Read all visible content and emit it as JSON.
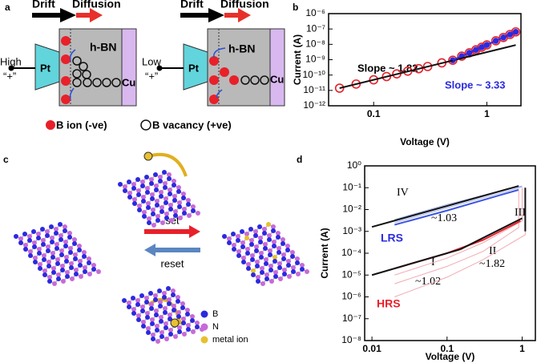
{
  "panel_a": {
    "label": "a",
    "drift": [
      "Drift",
      "Drift"
    ],
    "diffusion": [
      "Diffusion",
      "Diffusion"
    ],
    "hbn": [
      "h-BN",
      "h-BN"
    ],
    "pt": [
      "Pt",
      "Pt"
    ],
    "cu": [
      "Cu",
      "Cu"
    ],
    "bias": [
      "High",
      "Low"
    ],
    "plus": [
      "“+”",
      "“+”"
    ],
    "legend": [
      "B ion (-ve)",
      "B vacancy (+ve)"
    ]
  },
  "panel_c": {
    "label": "c",
    "set": "set",
    "reset": "reset",
    "legend": [
      "B",
      "N",
      "metal ion"
    ]
  },
  "chart_data": [
    {
      "type": "scatter",
      "label": "b",
      "x_label": "Voltage (V)",
      "y_label": "Current (A)",
      "log_x": true,
      "log_y": true,
      "xlim": [
        0.04,
        2
      ],
      "ylim": [
        1e-12,
        1e-06
      ],
      "xticks": [
        0.1,
        1
      ],
      "yticks": [
        {
          "value": 1e-12,
          "label": "10⁻¹²"
        },
        {
          "value": 1e-11,
          "label": "10⁻¹¹"
        },
        {
          "value": 1e-10,
          "label": "10⁻¹⁰"
        },
        {
          "value": 1e-09,
          "label": "10⁻⁹"
        },
        {
          "value": 1e-08,
          "label": "10⁻⁸"
        },
        {
          "value": 1e-07,
          "label": "10⁻⁷"
        },
        {
          "value": 1e-06,
          "label": "10⁻⁶"
        }
      ],
      "series": [
        {
          "color": "#e8202a",
          "marker": "open-circle",
          "x": [
            0.05,
            0.07,
            0.1,
            0.13,
            0.16,
            0.2,
            0.25,
            0.3,
            0.4,
            0.5,
            0.6,
            0.7,
            0.8,
            0.9,
            1.0,
            1.2,
            1.4,
            1.6,
            1.8
          ],
          "values": [
            1.4e-11,
            2.6e-11,
            4.9e-11,
            8e-11,
            1.2e-10,
            1.8e-10,
            2.6e-10,
            3.6e-10,
            6.2e-10,
            9.2e-10,
            1.7e-09,
            2.8e-09,
            4.4e-09,
            6.5e-09,
            9.2e-09,
            1.7e-08,
            2.8e-08,
            4.4e-08,
            6.5e-08
          ]
        },
        {
          "color": "#2b2be0",
          "marker": "dot",
          "x": [
            0.5,
            0.6,
            0.7,
            0.8,
            0.9,
            1.0,
            1.2,
            1.4,
            1.6,
            1.8
          ],
          "values": [
            9.2e-10,
            1.7e-09,
            2.8e-09,
            4.4e-09,
            6.5e-09,
            9.2e-09,
            1.7e-08,
            2.8e-08,
            4.4e-08,
            6.5e-08
          ]
        },
        {
          "color": "#111111",
          "marker": "line",
          "x": [
            0.05,
            1.8
          ],
          "values": [
            1.4e-11,
            9e-09
          ]
        },
        {
          "color": "#2b2be0",
          "marker": "line",
          "x": [
            0.5,
            1.8
          ],
          "values": [
            9.2e-10,
            6.5e-08
          ]
        }
      ],
      "annotations": [
        "Slope ~ 1.82",
        "Slope ~ 3.33"
      ]
    },
    {
      "type": "line",
      "label": "d",
      "x_label": "Voltage (V)",
      "y_label": "Current (A)",
      "log_x": true,
      "log_y": true,
      "xlim": [
        0.008,
        1.5
      ],
      "ylim": [
        1e-08,
        1
      ],
      "xticks": [
        0.01,
        0.1,
        1
      ],
      "yticks": [
        {
          "value": 1e-08,
          "label": "10⁻⁸"
        },
        {
          "value": 1e-07,
          "label": "10⁻⁷"
        },
        {
          "value": 1e-06,
          "label": "10⁻⁶"
        },
        {
          "value": 1e-05,
          "label": "10⁻⁵"
        },
        {
          "value": 0.0001,
          "label": "10⁻⁴"
        },
        {
          "value": 0.001,
          "label": "10⁻³"
        },
        {
          "value": 0.01,
          "label": "10⁻²"
        },
        {
          "value": 0.1,
          "label": "10⁻¹"
        },
        {
          "value": 1,
          "label": "10⁰"
        }
      ],
      "series": [
        {
          "color": "#9fb0f0",
          "width": 1,
          "x": [
            0.02,
            0.1,
            0.5,
            1.0
          ],
          "values": [
            0.0025,
            0.012,
            0.055,
            0.11
          ]
        },
        {
          "color": "#9fb0f0",
          "width": 1,
          "x": [
            0.02,
            0.1,
            0.5,
            1.0
          ],
          "values": [
            0.0035,
            0.017,
            0.07,
            0.12
          ]
        },
        {
          "color": "#3d55e0",
          "width": 2,
          "x": [
            0.02,
            0.1,
            0.5,
            0.9
          ],
          "values": [
            0.002,
            0.009,
            0.045,
            0.08
          ]
        },
        {
          "color": "#f2aab0",
          "width": 1,
          "x": [
            0.02,
            0.1,
            0.3,
            1.0,
            1.0
          ],
          "values": [
            1e-05,
            6e-05,
            0.0003,
            0.003,
            0.1
          ]
        },
        {
          "color": "#f2aab0",
          "width": 1,
          "x": [
            0.02,
            0.1,
            0.3,
            1.1,
            1.1
          ],
          "values": [
            1e-06,
            8e-06,
            5e-05,
            0.0007,
            0.1
          ]
        },
        {
          "color": "#f2aab0",
          "width": 1,
          "x": [
            0.02,
            0.1,
            0.3,
            0.9,
            0.9
          ],
          "values": [
            4e-06,
            2.5e-05,
            0.00012,
            0.0015,
            0.08
          ]
        },
        {
          "color": "#e8202a",
          "width": 2,
          "x": [
            0.02,
            0.1,
            0.3,
            0.95
          ],
          "values": [
            2e-05,
            0.0001,
            0.0004,
            0.003
          ]
        },
        {
          "color": "#111111",
          "width": 2,
          "x": [
            0.01,
            0.9
          ],
          "values": [
            0.0016,
            0.12
          ]
        },
        {
          "color": "#111111",
          "width": 2,
          "x": [
            0.01,
            0.15
          ],
          "values": [
            1e-05,
            0.00015
          ]
        },
        {
          "color": "#111111",
          "width": 2,
          "x": [
            0.15,
            1.0
          ],
          "values": [
            0.00015,
            0.004
          ]
        },
        {
          "color": "#111111",
          "width": 2,
          "x": [
            1.1,
            1.1
          ],
          "values": [
            0.001,
            0.1
          ]
        }
      ],
      "annotations": [
        "IV",
        "~1.03",
        "LRS",
        "II",
        "I",
        "~1.82",
        "~1.02",
        "HRS",
        "III"
      ]
    }
  ]
}
